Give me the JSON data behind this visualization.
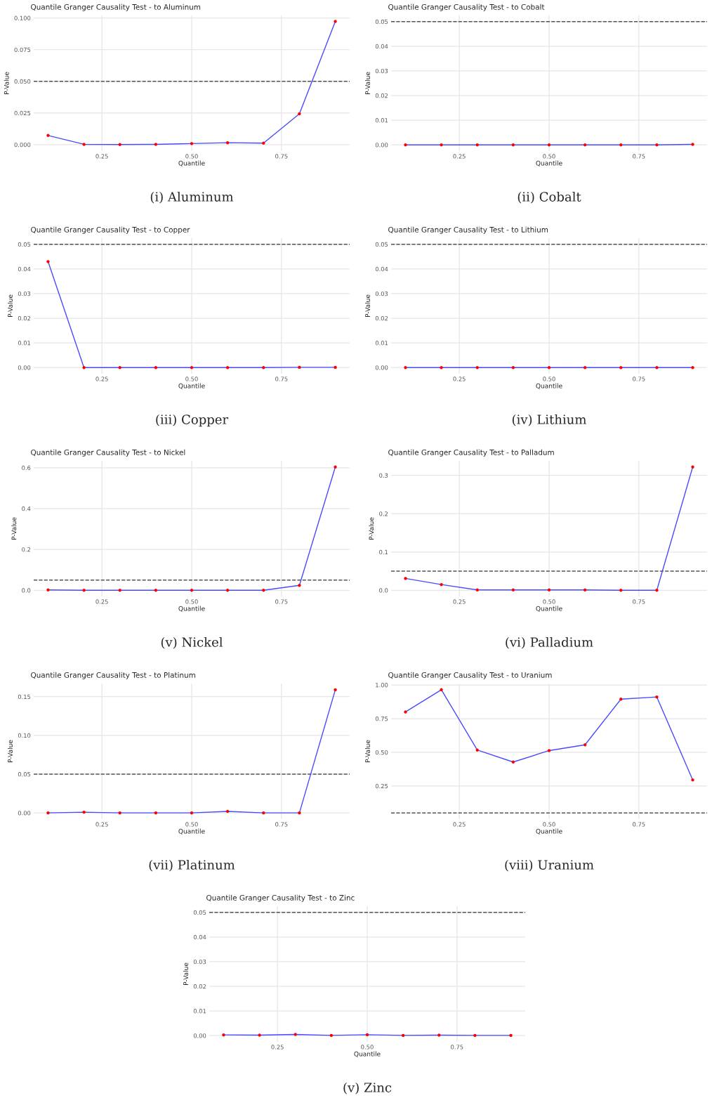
{
  "chart_data": [
    {
      "type": "line",
      "title": "Quantile Granger Causality Test - to Aluminum",
      "xlabel": "Quantile",
      "ylabel": "P-Value",
      "x": [
        0.1,
        0.2,
        0.3,
        0.4,
        0.5,
        0.6,
        0.7,
        0.8,
        0.9
      ],
      "xlim": [
        0.06,
        0.94
      ],
      "xticks": [
        {
          "value": 0.25,
          "label": "0.25"
        },
        {
          "value": 0.5,
          "label": "0.50"
        },
        {
          "value": 0.75,
          "label": "0.75"
        }
      ],
      "ylim": [
        -0.005,
        0.102
      ],
      "yticks": [
        {
          "value": 0,
          "label": "0.000"
        },
        {
          "value": 0.025,
          "label": "0.025"
        },
        {
          "value": 0.05,
          "label": "0.050"
        },
        {
          "value": 0.075,
          "label": "0.075"
        },
        {
          "value": 0.1,
          "label": "0.100"
        }
      ],
      "grid": true,
      "series": [
        {
          "type": "line",
          "color": "#4a4aff",
          "values": [
            0.0073,
            0.0003,
            0.0001,
            0.0003,
            0.0009,
            0.0016,
            0.0012,
            0.0244,
            0.0973
          ]
        },
        {
          "type": "scatter",
          "color": "#ff0000",
          "marker": "circle",
          "values": [
            0.0073,
            0.0003,
            0.0001,
            0.0003,
            0.0009,
            0.0016,
            0.0012,
            0.0244,
            0.0973
          ]
        }
      ],
      "ref_lines": [
        {
          "axis": "y",
          "value": 0.05,
          "color": "#555555",
          "line_style": "dashed"
        }
      ],
      "annotations": [
        "(i) Aluminum"
      ]
    },
    {
      "type": "line",
      "title": "Quantile Granger Causality Test - to Cobalt",
      "xlabel": "Quantile",
      "ylabel": "P-Value",
      "x": [
        0.1,
        0.2,
        0.3,
        0.4,
        0.5,
        0.6,
        0.7,
        0.8,
        0.9
      ],
      "xlim": [
        0.06,
        0.94
      ],
      "xticks": [
        {
          "value": 0.25,
          "label": "0.25"
        },
        {
          "value": 0.5,
          "label": "0.50"
        },
        {
          "value": 0.75,
          "label": "0.75"
        }
      ],
      "ylim": [
        -0.0025,
        0.0525
      ],
      "yticks": [
        {
          "value": 0,
          "label": "0.00"
        },
        {
          "value": 0.01,
          "label": "0.01"
        },
        {
          "value": 0.02,
          "label": "0.02"
        },
        {
          "value": 0.03,
          "label": "0.03"
        },
        {
          "value": 0.04,
          "label": "0.04"
        },
        {
          "value": 0.05,
          "label": "0.05"
        }
      ],
      "grid": true,
      "series": [
        {
          "type": "line",
          "color": "#4a4aff",
          "values": [
            0,
            0,
            0,
            0,
            0,
            0,
            0,
            0,
            0.0002
          ]
        },
        {
          "type": "scatter",
          "color": "#ff0000",
          "marker": "circle",
          "values": [
            0,
            0,
            0,
            0,
            0,
            0,
            0,
            0,
            0.0002
          ]
        }
      ],
      "ref_lines": [
        {
          "axis": "y",
          "value": 0.05,
          "color": "#555555",
          "line_style": "dashed"
        }
      ],
      "annotations": [
        "(ii) Cobalt"
      ]
    },
    {
      "type": "line",
      "title": "Quantile Granger Causality Test - to Copper",
      "xlabel": "Quantile",
      "ylabel": "P-Value",
      "x": [
        0.1,
        0.2,
        0.3,
        0.4,
        0.5,
        0.6,
        0.7,
        0.8,
        0.9
      ],
      "xlim": [
        0.06,
        0.94
      ],
      "xticks": [
        {
          "value": 0.25,
          "label": "0.25"
        },
        {
          "value": 0.5,
          "label": "0.50"
        },
        {
          "value": 0.75,
          "label": "0.75"
        }
      ],
      "ylim": [
        -0.0025,
        0.0525
      ],
      "yticks": [
        {
          "value": 0,
          "label": "0.00"
        },
        {
          "value": 0.01,
          "label": "0.01"
        },
        {
          "value": 0.02,
          "label": "0.02"
        },
        {
          "value": 0.03,
          "label": "0.03"
        },
        {
          "value": 0.04,
          "label": "0.04"
        },
        {
          "value": 0.05,
          "label": "0.05"
        }
      ],
      "grid": true,
      "series": [
        {
          "type": "line",
          "color": "#4a4aff",
          "values": [
            0.043,
            0,
            0,
            0,
            0,
            0,
            0,
            0.0001,
            0.0001
          ]
        },
        {
          "type": "scatter",
          "color": "#ff0000",
          "marker": "circle",
          "values": [
            0.043,
            0,
            0,
            0,
            0,
            0,
            0,
            0.0001,
            0.0001
          ]
        }
      ],
      "ref_lines": [
        {
          "axis": "y",
          "value": 0.05,
          "color": "#555555",
          "line_style": "dashed"
        }
      ],
      "annotations": [
        "(iii) Copper"
      ]
    },
    {
      "type": "line",
      "title": "Quantile Granger Causality Test - to Lithium",
      "xlabel": "Quantile",
      "ylabel": "P-Value",
      "x": [
        0.1,
        0.2,
        0.3,
        0.4,
        0.5,
        0.6,
        0.7,
        0.8,
        0.9
      ],
      "xlim": [
        0.06,
        0.94
      ],
      "xticks": [
        {
          "value": 0.25,
          "label": "0.25"
        },
        {
          "value": 0.5,
          "label": "0.50"
        },
        {
          "value": 0.75,
          "label": "0.75"
        }
      ],
      "ylim": [
        -0.0025,
        0.0525
      ],
      "yticks": [
        {
          "value": 0,
          "label": "0.00"
        },
        {
          "value": 0.01,
          "label": "0.01"
        },
        {
          "value": 0.02,
          "label": "0.02"
        },
        {
          "value": 0.03,
          "label": "0.03"
        },
        {
          "value": 0.04,
          "label": "0.04"
        },
        {
          "value": 0.05,
          "label": "0.05"
        }
      ],
      "grid": true,
      "series": [
        {
          "type": "line",
          "color": "#4a4aff",
          "values": [
            0,
            0,
            0,
            0,
            0,
            0,
            0,
            0,
            0
          ]
        },
        {
          "type": "scatter",
          "color": "#ff0000",
          "marker": "circle",
          "values": [
            0,
            0,
            0,
            0,
            0,
            0,
            0,
            0,
            0
          ]
        }
      ],
      "ref_lines": [
        {
          "axis": "y",
          "value": 0.05,
          "color": "#555555",
          "line_style": "dashed"
        }
      ],
      "annotations": [
        "(iv) Lithium"
      ]
    },
    {
      "type": "line",
      "title": "Quantile Granger Causality Test - to Nickel",
      "xlabel": "Quantile",
      "ylabel": "P-Value",
      "x": [
        0.1,
        0.2,
        0.3,
        0.4,
        0.5,
        0.6,
        0.7,
        0.8,
        0.9
      ],
      "xlim": [
        0.06,
        0.94
      ],
      "xticks": [
        {
          "value": 0.25,
          "label": "0.25"
        },
        {
          "value": 0.5,
          "label": "0.50"
        },
        {
          "value": 0.75,
          "label": "0.75"
        }
      ],
      "ylim": [
        -0.03,
        0.634
      ],
      "yticks": [
        {
          "value": 0,
          "label": "0.0"
        },
        {
          "value": 0.2,
          "label": "0.2"
        },
        {
          "value": 0.4,
          "label": "0.4"
        },
        {
          "value": 0.6,
          "label": "0.6"
        }
      ],
      "grid": true,
      "series": [
        {
          "type": "line",
          "color": "#4a4aff",
          "values": [
            0.002,
            0,
            0,
            0,
            0,
            0,
            0,
            0.024,
            0.604
          ]
        },
        {
          "type": "scatter",
          "color": "#ff0000",
          "marker": "circle",
          "values": [
            0.002,
            0,
            0,
            0,
            0,
            0,
            0,
            0.024,
            0.604
          ]
        }
      ],
      "ref_lines": [
        {
          "axis": "y",
          "value": 0.05,
          "color": "#555555",
          "line_style": "dashed"
        }
      ],
      "annotations": [
        "(v) Nickel"
      ]
    },
    {
      "type": "line",
      "title": "Quantile Granger Causality Test - to Palladum",
      "xlabel": "Quantile",
      "ylabel": "P-Value",
      "x": [
        0.1,
        0.2,
        0.3,
        0.4,
        0.5,
        0.6,
        0.7,
        0.8,
        0.9
      ],
      "xlim": [
        0.06,
        0.94
      ],
      "xticks": [
        {
          "value": 0.25,
          "label": "0.25"
        },
        {
          "value": 0.5,
          "label": "0.50"
        },
        {
          "value": 0.75,
          "label": "0.75"
        }
      ],
      "ylim": [
        -0.016,
        0.338
      ],
      "yticks": [
        {
          "value": 0,
          "label": "0.0"
        },
        {
          "value": 0.1,
          "label": "0.1"
        },
        {
          "value": 0.2,
          "label": "0.2"
        },
        {
          "value": 0.3,
          "label": "0.3"
        }
      ],
      "grid": true,
      "series": [
        {
          "type": "line",
          "color": "#4a4aff",
          "values": [
            0.031,
            0.015,
            0.001,
            0.001,
            0.001,
            0.001,
            0,
            0,
            0.322
          ]
        },
        {
          "type": "scatter",
          "color": "#ff0000",
          "marker": "circle",
          "values": [
            0.031,
            0.015,
            0.001,
            0.001,
            0.001,
            0.001,
            0,
            0,
            0.322
          ]
        }
      ],
      "ref_lines": [
        {
          "axis": "y",
          "value": 0.05,
          "color": "#555555",
          "line_style": "dashed"
        }
      ],
      "annotations": [
        "(vi) Palladium"
      ]
    },
    {
      "type": "line",
      "title": "Quantile Granger Causality Test - to Platinum",
      "xlabel": "Quantile",
      "ylabel": "P-Value",
      "x": [
        0.1,
        0.2,
        0.3,
        0.4,
        0.5,
        0.6,
        0.7,
        0.8,
        0.9
      ],
      "xlim": [
        0.06,
        0.94
      ],
      "xticks": [
        {
          "value": 0.25,
          "label": "0.25"
        },
        {
          "value": 0.5,
          "label": "0.50"
        },
        {
          "value": 0.75,
          "label": "0.75"
        }
      ],
      "ylim": [
        -0.008,
        0.167
      ],
      "yticks": [
        {
          "value": 0,
          "label": "0.00"
        },
        {
          "value": 0.05,
          "label": "0.05"
        },
        {
          "value": 0.1,
          "label": "0.10"
        },
        {
          "value": 0.15,
          "label": "0.15"
        }
      ],
      "grid": true,
      "series": [
        {
          "type": "line",
          "color": "#4a4aff",
          "values": [
            0,
            0.001,
            0,
            0,
            0,
            0.002,
            0,
            0,
            0.159
          ]
        },
        {
          "type": "scatter",
          "color": "#ff0000",
          "marker": "circle",
          "values": [
            0,
            0.001,
            0,
            0,
            0,
            0.002,
            0,
            0,
            0.159
          ]
        }
      ],
      "ref_lines": [
        {
          "axis": "y",
          "value": 0.05,
          "color": "#555555",
          "line_style": "dashed"
        }
      ],
      "annotations": [
        "(vii) Platinum"
      ]
    },
    {
      "type": "line",
      "title": "Quantile Granger Causality Test - to Uranium",
      "xlabel": "Quantile",
      "ylabel": "P-Value",
      "x": [
        0.1,
        0.2,
        0.3,
        0.4,
        0.5,
        0.6,
        0.7,
        0.8,
        0.9
      ],
      "xlim": [
        0.06,
        0.94
      ],
      "xticks": [
        {
          "value": 0.25,
          "label": "0.25"
        },
        {
          "value": 0.5,
          "label": "0.50"
        },
        {
          "value": 0.75,
          "label": "0.75"
        }
      ],
      "ylim": [
        0.004,
        1.011
      ],
      "yticks": [
        {
          "value": 0.25,
          "label": "0.25"
        },
        {
          "value": 0.5,
          "label": "0.50"
        },
        {
          "value": 0.75,
          "label": "0.75"
        },
        {
          "value": 1,
          "label": "1.00"
        }
      ],
      "grid": true,
      "series": [
        {
          "type": "line",
          "color": "#4a4aff",
          "values": [
            0.8,
            0.965,
            0.517,
            0.428,
            0.513,
            0.556,
            0.895,
            0.911,
            0.295
          ]
        },
        {
          "type": "scatter",
          "color": "#ff0000",
          "marker": "circle",
          "values": [
            0.8,
            0.965,
            0.517,
            0.428,
            0.513,
            0.556,
            0.895,
            0.911,
            0.295
          ]
        }
      ],
      "ref_lines": [
        {
          "axis": "y",
          "value": 0.05,
          "color": "#555555",
          "line_style": "dashed"
        }
      ],
      "annotations": [
        "(viii) Uranium"
      ]
    },
    {
      "type": "line",
      "title": "Quantile Granger Causality Test - to Zinc",
      "xlabel": "Quantile",
      "ylabel": "P-Value",
      "x": [
        0.1,
        0.2,
        0.3,
        0.4,
        0.5,
        0.6,
        0.7,
        0.8,
        0.9
      ],
      "xlim": [
        0.06,
        0.94
      ],
      "xticks": [
        {
          "value": 0.25,
          "label": "0.25"
        },
        {
          "value": 0.5,
          "label": "0.50"
        },
        {
          "value": 0.75,
          "label": "0.75"
        }
      ],
      "ylim": [
        -0.0025,
        0.0525
      ],
      "yticks": [
        {
          "value": 0,
          "label": "0.00"
        },
        {
          "value": 0.01,
          "label": "0.01"
        },
        {
          "value": 0.02,
          "label": "0.02"
        },
        {
          "value": 0.03,
          "label": "0.03"
        },
        {
          "value": 0.04,
          "label": "0.04"
        },
        {
          "value": 0.05,
          "label": "0.05"
        }
      ],
      "grid": true,
      "series": [
        {
          "type": "line",
          "color": "#4a4aff",
          "values": [
            0.0003,
            0.0002,
            0.0005,
            0.0001,
            0.0004,
            0.0001,
            0.0002,
            0.0001,
            0.0001
          ]
        },
        {
          "type": "scatter",
          "color": "#ff0000",
          "marker": "circle",
          "values": [
            0.0003,
            0.0002,
            0.0005,
            0.0001,
            0.0004,
            0.0001,
            0.0002,
            0.0001,
            0.0001
          ]
        }
      ],
      "ref_lines": [
        {
          "axis": "y",
          "value": 0.05,
          "color": "#555555",
          "line_style": "dashed"
        }
      ],
      "annotations": [
        "(v) Zinc"
      ]
    }
  ]
}
